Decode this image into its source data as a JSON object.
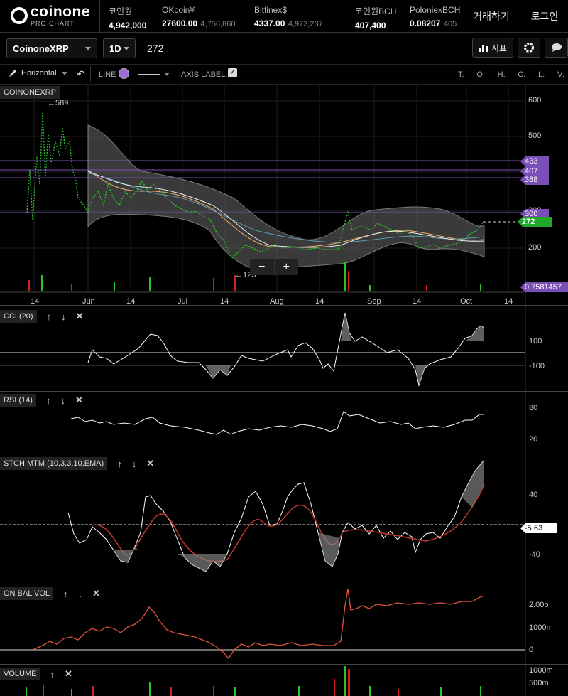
{
  "app": {
    "logo": "coinone",
    "logo_sub": "PRO CHART"
  },
  "tickers": [
    {
      "name": "코인원",
      "price": "4,942,000",
      "sub": ""
    },
    {
      "name": "OKcoin¥",
      "price": "27600.00",
      "sub": "4,756,860"
    },
    {
      "name": "Bitfinex$",
      "price": "4337.00",
      "sub": "4,973,237"
    },
    {
      "name": "코인원BCH",
      "price": "407,400",
      "sub": ""
    },
    {
      "name": "PoloniexBCH",
      "price": "0.08207",
      "sub": "405"
    }
  ],
  "top_buttons": {
    "trade": "거래하기",
    "login": "로그인"
  },
  "toolbar": {
    "symbol": "CoinoneXRP",
    "interval": "1D",
    "value": "272",
    "indicator_btn": "지표"
  },
  "drawbar": {
    "draw_mode": "Horizontal",
    "line_label": "LINE",
    "axis_label": "AXIS LABEL:",
    "ohlc": [
      "T:",
      "O:",
      "H:",
      "C:",
      "L:",
      "V:"
    ],
    "line_color": "#9b6ad6"
  },
  "main_chart": {
    "name": "COINONEXRP",
    "high_marker": "←589",
    "low_marker": "←123",
    "price_ticks": [
      "600",
      "500",
      "400",
      "300",
      "200"
    ],
    "date_ticks": [
      "14",
      "Jun",
      "14",
      "Jul",
      "14",
      "Aug",
      "14",
      "Sep",
      "14",
      "Oct",
      "14"
    ],
    "line_tags": [
      {
        "label": "433",
        "color": "#7b4fb8"
      },
      {
        "label": "407",
        "color": "#7b4fb8"
      },
      {
        "label": "388",
        "color": "#7b4fb8"
      },
      {
        "label": "300",
        "color": "#7b4fb8"
      },
      {
        "label": "272",
        "color": "#1fa82a"
      },
      {
        "label": "0.7581457",
        "color": "#7b4fb8"
      }
    ],
    "zoom_minus": "−",
    "zoom_plus": "+"
  },
  "panels": [
    {
      "name": "CCI (20)",
      "ticks": [
        "100",
        "-100"
      ]
    },
    {
      "name": "RSI (14)",
      "ticks": [
        "80",
        "20"
      ]
    },
    {
      "name": "STCH MTM (10,3,3,10,EMA)",
      "ticks": [
        "40",
        "-40"
      ],
      "tag": "-5.63"
    },
    {
      "name": "ON BAL VOL",
      "ticks": [
        "2.00b",
        "1000m",
        "0"
      ]
    },
    {
      "name": "VOLUME",
      "ticks": [
        "1000m",
        "500m"
      ]
    }
  ],
  "colors": {
    "up": "#2bc22b",
    "down": "#d11f1f",
    "accent_purple": "#7b4fb8",
    "signal": "#c0392b",
    "band": "#9a9a9a"
  }
}
